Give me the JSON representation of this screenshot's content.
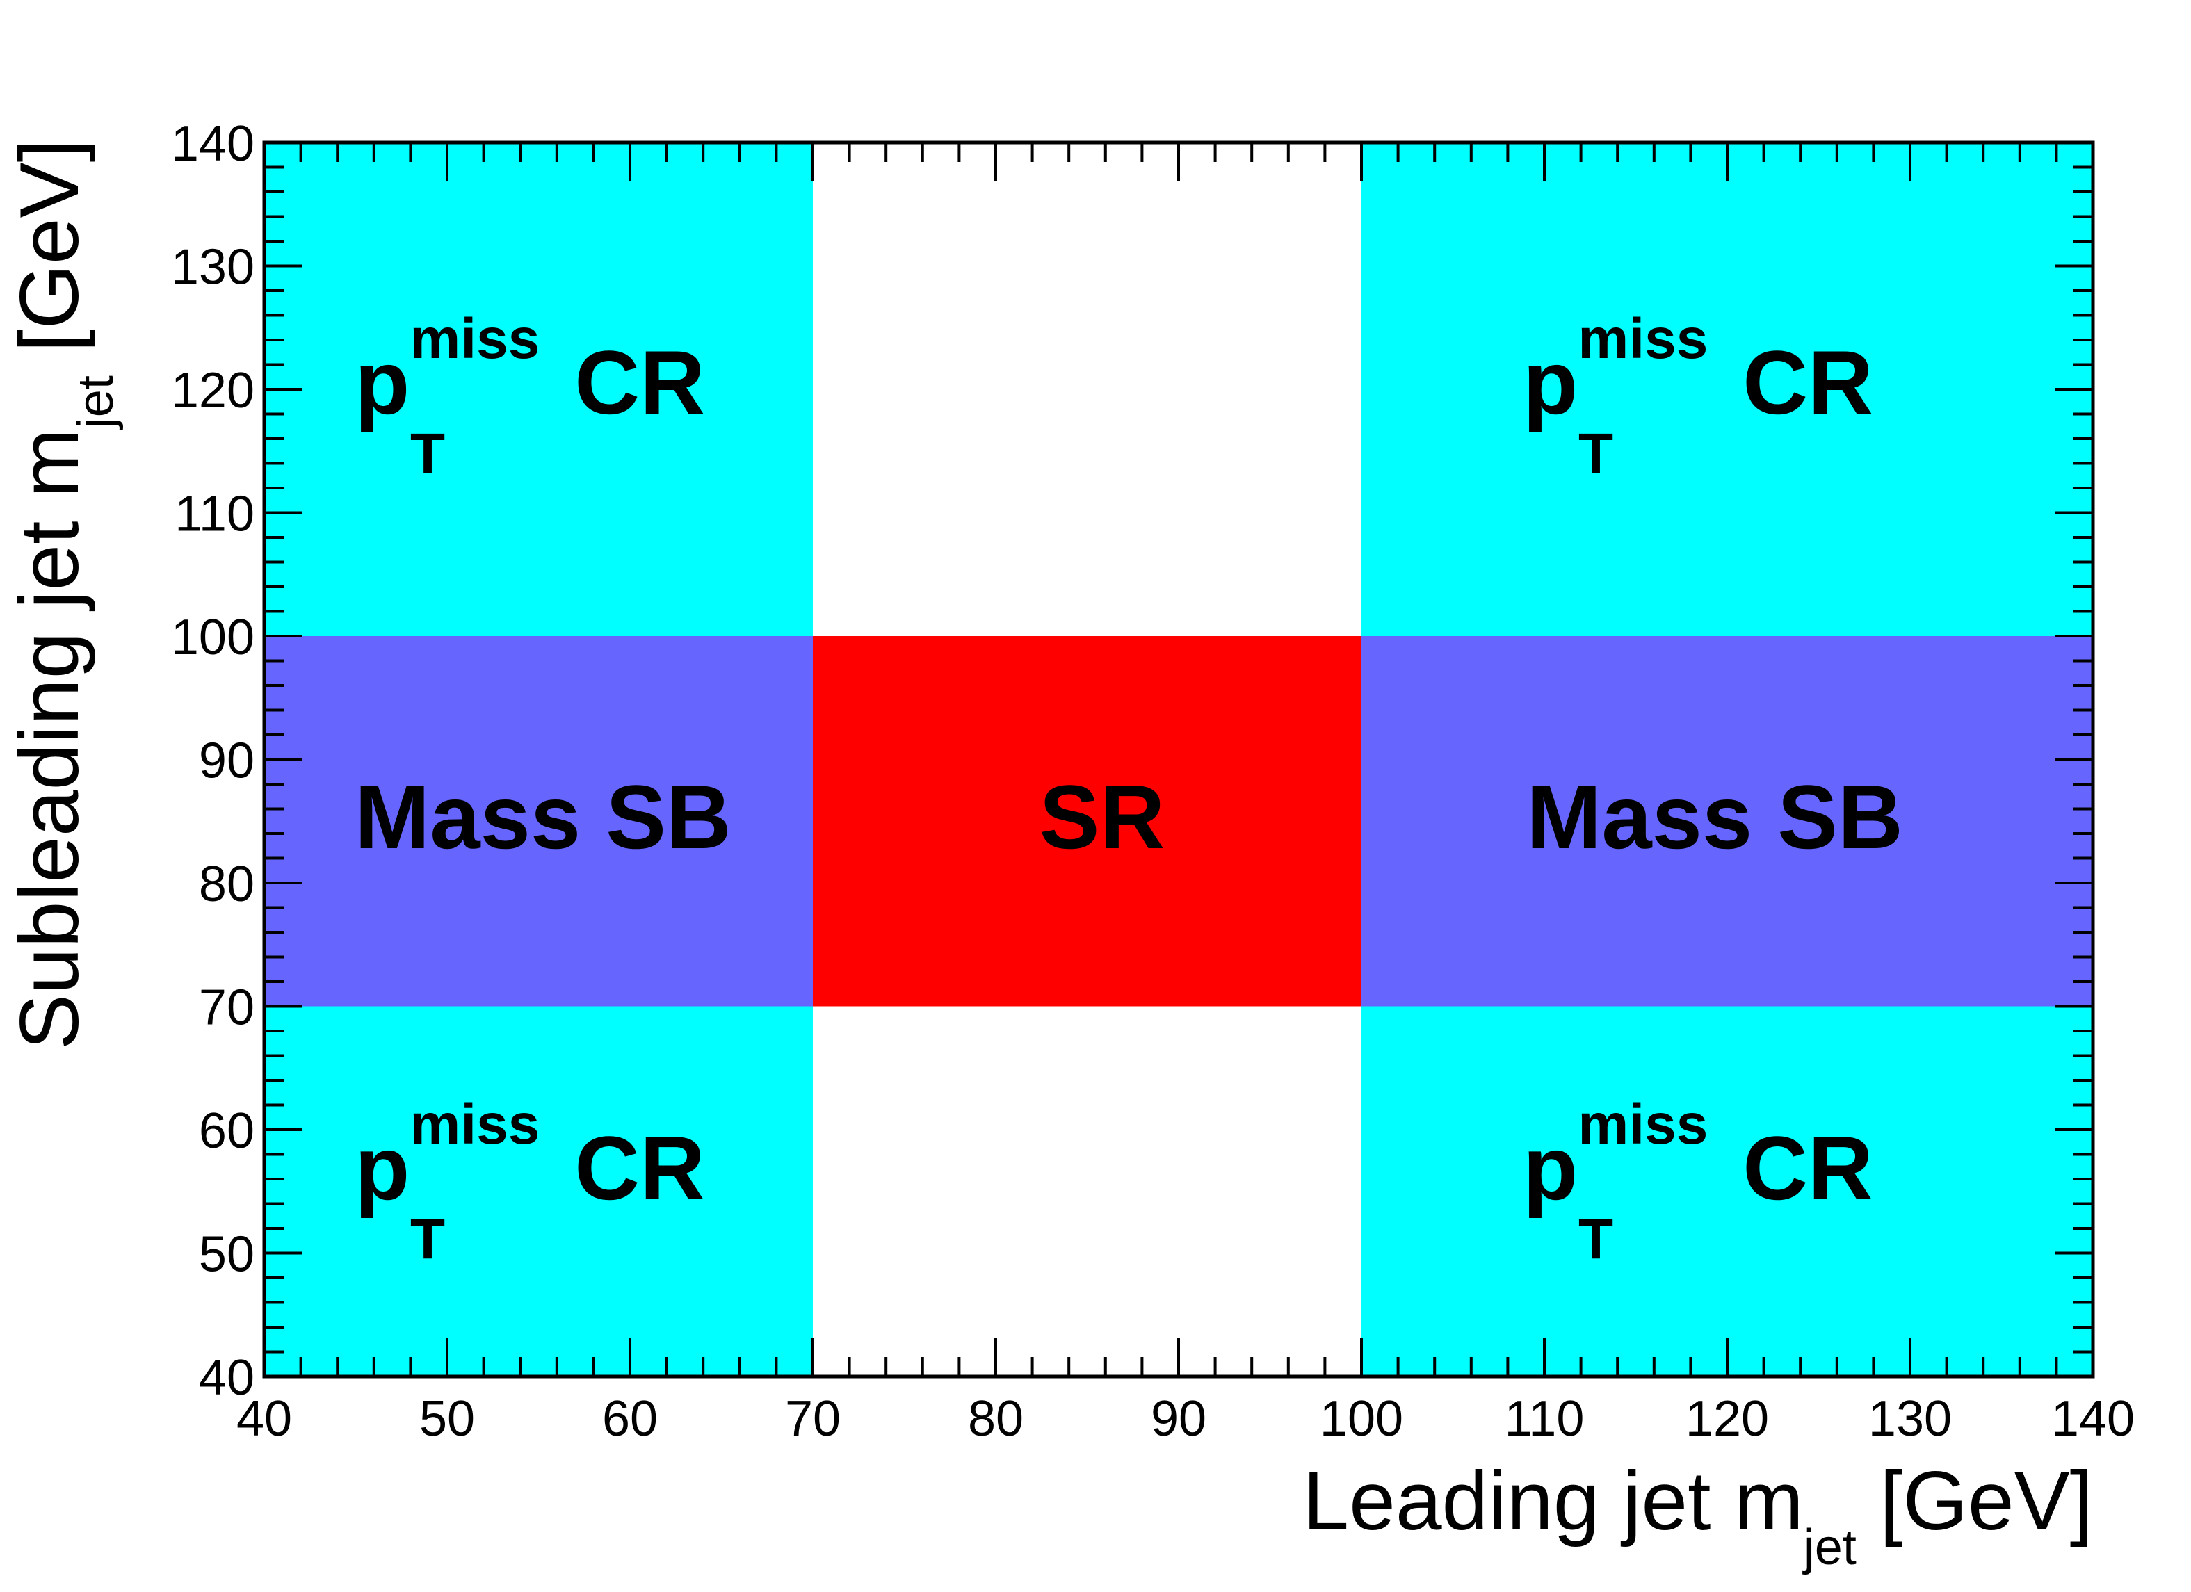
{
  "chart_data": {
    "type": "region-map",
    "xlabel": {
      "prefix": "Leading jet m",
      "sub": "jet",
      "suffix": " [GeV]"
    },
    "ylabel": {
      "prefix": "Subleading jet m",
      "sub": "jet",
      "suffix": " [GeV]"
    },
    "xlim": [
      40,
      140
    ],
    "ylim": [
      40,
      140
    ],
    "x_ticks": [
      "40",
      "50",
      "60",
      "70",
      "80",
      "90",
      "100",
      "110",
      "120",
      "130",
      "140"
    ],
    "y_ticks": [
      "40",
      "50",
      "60",
      "70",
      "80",
      "90",
      "100",
      "110",
      "120",
      "130",
      "140"
    ],
    "regions": [
      {
        "name": "ptmiss-cr-top-left",
        "x": [
          40,
          70
        ],
        "y": [
          100,
          140
        ],
        "color": "#00ffff"
      },
      {
        "name": "ptmiss-cr-top-right",
        "x": [
          100,
          140
        ],
        "y": [
          100,
          140
        ],
        "color": "#00ffff"
      },
      {
        "name": "ptmiss-cr-bottom-left",
        "x": [
          40,
          70
        ],
        "y": [
          40,
          70
        ],
        "color": "#00ffff"
      },
      {
        "name": "ptmiss-cr-bottom-right",
        "x": [
          100,
          140
        ],
        "y": [
          40,
          70
        ],
        "color": "#00ffff"
      },
      {
        "name": "mass-sb-left",
        "x": [
          40,
          70
        ],
        "y": [
          70,
          100
        ],
        "color": "#6666ff"
      },
      {
        "name": "mass-sb-right",
        "x": [
          100,
          140
        ],
        "y": [
          70,
          100
        ],
        "color": "#6666ff"
      },
      {
        "name": "signal-region",
        "x": [
          70,
          100
        ],
        "y": [
          70,
          100
        ],
        "color": "#ff0000"
      }
    ],
    "labels": {
      "cr_main": "p",
      "cr_sup": "miss",
      "cr_sub": "T",
      "cr_suffix": " CR",
      "sb": "Mass SB",
      "sr": "SR"
    }
  }
}
